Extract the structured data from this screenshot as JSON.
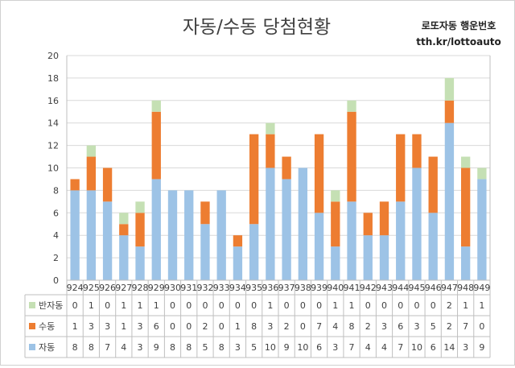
{
  "title": "자동/수동 당첨현황",
  "brand": {
    "name": "로또자동 행운번호",
    "url": "tth.kr/lottoauto"
  },
  "colors": {
    "auto": "#9dc3e6",
    "manual": "#ed7d31",
    "semi": "#c5e0b4",
    "grid": "#d9d9d9",
    "axis": "#bfbfbf"
  },
  "chart_data": {
    "type": "bar",
    "stacked": true,
    "categories": [
      "924",
      "925",
      "926",
      "927",
      "928",
      "929",
      "930",
      "931",
      "932",
      "933",
      "934",
      "935",
      "936",
      "937",
      "938",
      "939",
      "940",
      "941",
      "942",
      "943",
      "944",
      "945",
      "946",
      "947",
      "948",
      "949"
    ],
    "ylim": [
      0,
      20
    ],
    "yticks": [
      0,
      2,
      4,
      6,
      8,
      10,
      12,
      14,
      16,
      18,
      20
    ],
    "grid": true,
    "legend": "data-table",
    "series": [
      {
        "name": "자동",
        "color": "#9dc3e6",
        "values": [
          8,
          8,
          7,
          4,
          3,
          9,
          8,
          8,
          5,
          8,
          3,
          5,
          10,
          9,
          10,
          6,
          3,
          7,
          4,
          4,
          7,
          10,
          6,
          14,
          3,
          9
        ]
      },
      {
        "name": "수동",
        "color": "#ed7d31",
        "values": [
          1,
          3,
          3,
          1,
          3,
          6,
          0,
          0,
          2,
          0,
          1,
          8,
          3,
          2,
          0,
          7,
          4,
          8,
          2,
          3,
          6,
          3,
          5,
          2,
          7,
          0
        ]
      },
      {
        "name": "반자동",
        "color": "#c5e0b4",
        "values": [
          0,
          1,
          0,
          1,
          1,
          1,
          0,
          0,
          0,
          0,
          0,
          0,
          1,
          0,
          0,
          0,
          1,
          1,
          0,
          0,
          0,
          0,
          0,
          2,
          1,
          1
        ]
      }
    ],
    "table_rows": [
      "반자동",
      "수동",
      "자동"
    ]
  }
}
